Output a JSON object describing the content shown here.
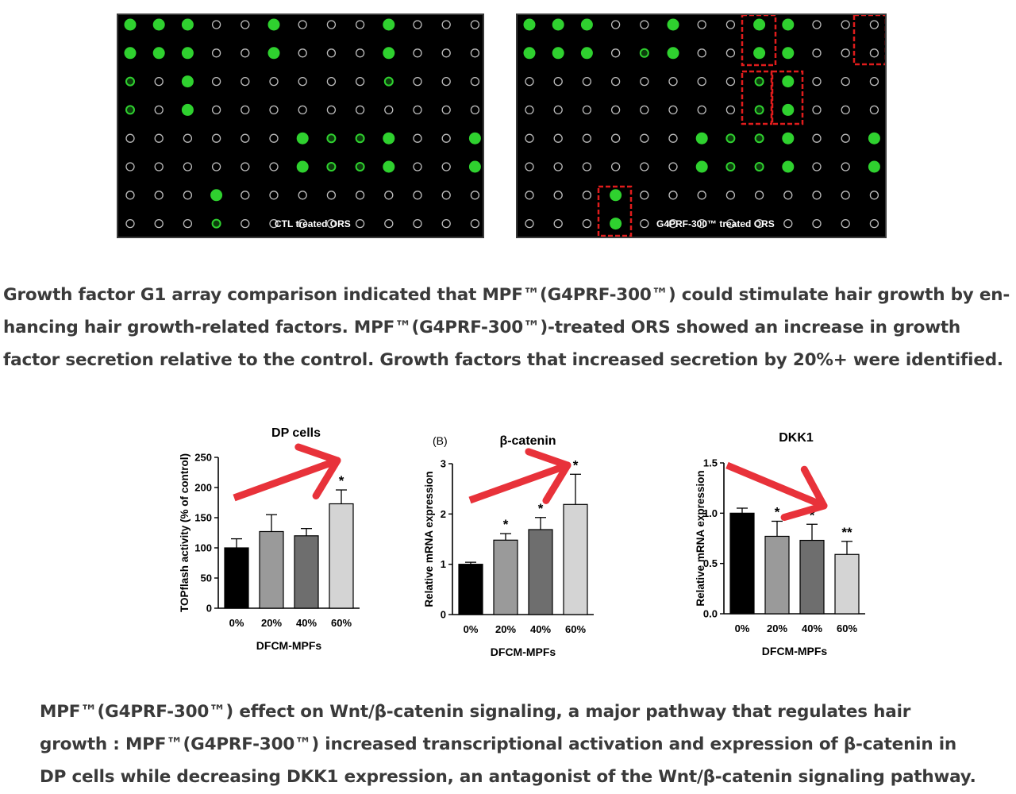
{
  "arrays": {
    "left": {
      "label": "CTL treated ORS",
      "rows": [
        [
          2,
          2,
          2,
          0,
          0,
          2,
          0,
          0,
          0,
          2,
          0,
          0,
          0
        ],
        [
          2,
          2,
          2,
          0,
          0,
          2,
          0,
          0,
          0,
          2,
          0,
          0,
          0
        ],
        [
          1,
          0,
          2,
          0,
          0,
          0,
          0,
          0,
          0,
          1,
          0,
          0,
          0
        ],
        [
          1,
          0,
          2,
          0,
          0,
          0,
          0,
          0,
          0,
          0,
          0,
          0,
          0
        ],
        [
          0,
          0,
          0,
          0,
          0,
          0,
          2,
          1,
          1,
          2,
          0,
          0,
          2
        ],
        [
          0,
          0,
          0,
          0,
          0,
          0,
          2,
          1,
          1,
          2,
          0,
          0,
          2
        ],
        [
          0,
          0,
          0,
          2,
          0,
          0,
          0,
          0,
          0,
          0,
          0,
          0,
          0
        ],
        [
          0,
          0,
          0,
          1,
          0,
          0,
          0,
          0,
          0,
          0,
          0,
          0,
          0
        ]
      ]
    },
    "right": {
      "label": "G4PRF-300™ treated ORS",
      "rows": [
        [
          2,
          2,
          2,
          0,
          0,
          2,
          0,
          0,
          2,
          2,
          0,
          0,
          0
        ],
        [
          2,
          2,
          2,
          0,
          1,
          2,
          0,
          0,
          2,
          2,
          0,
          0,
          0
        ],
        [
          0,
          0,
          0,
          0,
          0,
          0,
          0,
          0,
          1,
          2,
          0,
          0,
          0
        ],
        [
          0,
          0,
          0,
          0,
          0,
          0,
          0,
          0,
          1,
          2,
          0,
          0,
          0
        ],
        [
          0,
          0,
          0,
          0,
          0,
          0,
          2,
          1,
          1,
          2,
          0,
          0,
          2
        ],
        [
          0,
          0,
          0,
          0,
          0,
          0,
          2,
          1,
          1,
          2,
          0,
          0,
          2
        ],
        [
          0,
          0,
          0,
          2,
          0,
          0,
          0,
          0,
          0,
          0,
          0,
          0,
          0
        ],
        [
          0,
          0,
          0,
          2,
          0,
          0,
          0,
          0,
          0,
          0,
          0,
          0,
          0
        ]
      ]
    }
  },
  "captions": {
    "first": [
      "Growth factor G1 array comparison indicated that MPF™(G4PRF-300™) could stimulate hair growth by en-",
      "hancing hair growth-related factors. MPF™(G4PRF-300™)-treated ORS showed an increase in growth",
      "factor secretion relative to the control. Growth factors that increased secretion by 20%+ were identified."
    ],
    "second": [
      "MPF™(G4PRF-300™) effect on Wnt/β-catenin signaling, a major pathway that regulates hair",
      "growth : MPF™(G4PRF-300™) increased transcriptional activation and expression of β-catenin in",
      "DP cells while decreasing DKK1 expression, an  antagonist of the Wnt/β-catenin signaling pathway."
    ]
  },
  "colors": {
    "spot": "#2fd12f",
    "arrow": "#e8323a",
    "highlight_box": "#e01c1c",
    "bars": [
      "#000000",
      "#9a9a9a",
      "#6e6e6e",
      "#d4d4d4"
    ]
  },
  "chart_data": [
    {
      "type": "bar",
      "title": "DP cells",
      "panel_label": "",
      "categories": [
        "0%",
        "20%",
        "40%",
        "60%"
      ],
      "values": [
        100,
        127,
        120,
        173
      ],
      "errors": [
        15,
        28,
        12,
        23
      ],
      "significance": [
        "",
        "",
        "",
        "*"
      ],
      "xlabel": "DFCM-MPFs",
      "ylabel": "TOPflash activity (% of control)",
      "ylim": [
        0,
        250
      ],
      "yticks": [
        "0",
        "50",
        "100",
        "150",
        "200",
        "250"
      ],
      "trend_arrow": "up"
    },
    {
      "type": "bar",
      "title": "β-catenin",
      "panel_label": "(B)",
      "categories": [
        "0%",
        "20%",
        "40%",
        "60%"
      ],
      "values": [
        1.0,
        1.48,
        1.69,
        2.19
      ],
      "errors": [
        0.04,
        0.13,
        0.24,
        0.6
      ],
      "significance": [
        "",
        "*",
        "*",
        "*"
      ],
      "xlabel": "DFCM-MPFs",
      "ylabel": "Relative mRNA expression",
      "ylim": [
        0,
        3
      ],
      "yticks": [
        "0",
        "1",
        "2",
        "3"
      ],
      "trend_arrow": "up"
    },
    {
      "type": "bar",
      "title": "DKK1",
      "panel_label": "",
      "categories": [
        "0%",
        "20%",
        "40%",
        "60%"
      ],
      "values": [
        1.0,
        0.77,
        0.73,
        0.59
      ],
      "errors": [
        0.05,
        0.15,
        0.16,
        0.13
      ],
      "significance": [
        "",
        "*",
        "*",
        "**"
      ],
      "xlabel": "DFCM-MPFs",
      "ylabel": "Relative mRNA expression",
      "ylim": [
        0,
        1.5
      ],
      "yticks": [
        "0.0",
        "0.5",
        "1.0",
        "1.5"
      ],
      "trend_arrow": "down"
    }
  ]
}
